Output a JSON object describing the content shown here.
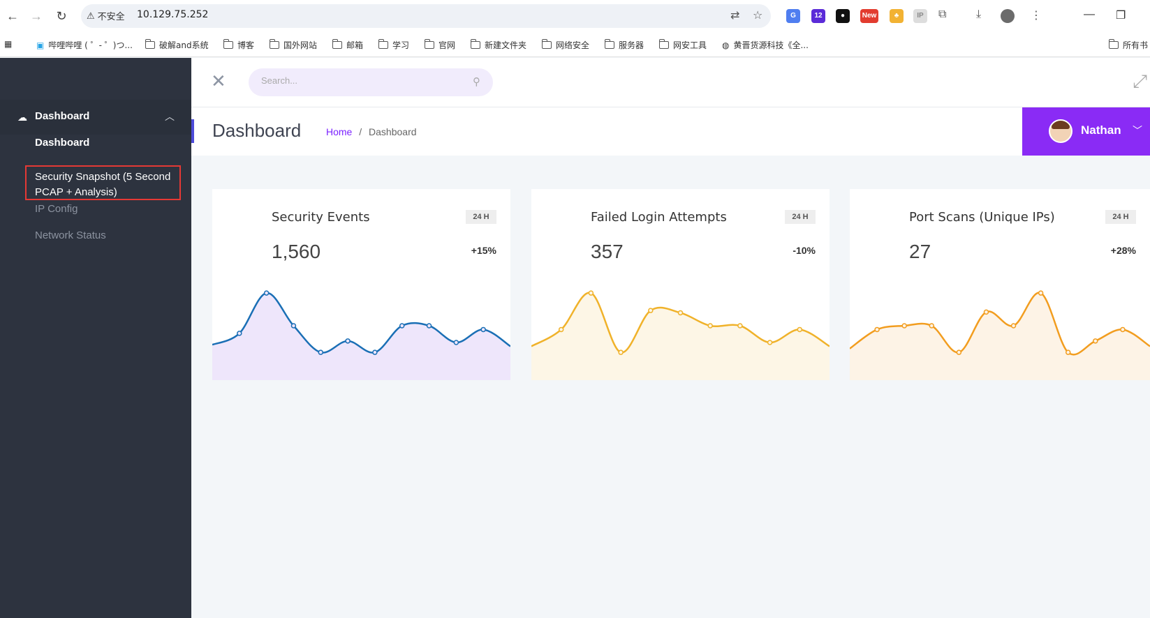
{
  "browser": {
    "security_label": "不安全",
    "url": "10.129.75.252",
    "bookmarks": [
      "哔哩哔哩 ( ゜- ゜)つ...",
      "破解and系统",
      "博客",
      "国外网站",
      "邮箱",
      "学习",
      "官网",
      "新建文件夹",
      "网络安全",
      "服务器",
      "网安工具",
      "黄晋货源科技《全...",
      "所有书"
    ]
  },
  "sidebar": {
    "group_label": "Dashboard",
    "items": [
      {
        "label": "Dashboard"
      },
      {
        "label": "Security Snapshot (5 Second PCAP + Analysis)"
      },
      {
        "label": "IP Config"
      },
      {
        "label": "Network Status"
      }
    ]
  },
  "header": {
    "search_placeholder": "Search...",
    "page_title": "Dashboard",
    "breadcrumb_home": "Home",
    "breadcrumb_sep": "/",
    "breadcrumb_current": "Dashboard",
    "user_name": "Nathan"
  },
  "cards": [
    {
      "title": "Security Events",
      "badge": "24 H",
      "value": "1,560",
      "delta": "+15%",
      "color": "#1a6fb5",
      "fill": "#eee6fb"
    },
    {
      "title": "Failed Login Attempts",
      "badge": "24 H",
      "value": "357",
      "delta": "-10%",
      "color": "#f0b22a",
      "fill": "#fdf6e6"
    },
    {
      "title": "Port Scans (Unique IPs)",
      "badge": "24 H",
      "value": "27",
      "delta": "+28%",
      "color": "#f29d1f",
      "fill": "#fdf3e6"
    }
  ],
  "chart_data": [
    {
      "type": "area",
      "series": [
        {
          "values": [
            30,
            45,
            98,
            55,
            20,
            35,
            20,
            55,
            55,
            33,
            50,
            28
          ]
        }
      ],
      "ylim": [
        0,
        110
      ]
    },
    {
      "type": "area",
      "series": [
        {
          "values": [
            28,
            50,
            98,
            20,
            75,
            72,
            55,
            55,
            33,
            50,
            28
          ]
        }
      ],
      "ylim": [
        0,
        110
      ]
    },
    {
      "type": "area",
      "series": [
        {
          "values": [
            25,
            50,
            55,
            55,
            20,
            73,
            55,
            98,
            20,
            35,
            50,
            28
          ]
        }
      ],
      "ylim": [
        0,
        110
      ]
    }
  ]
}
